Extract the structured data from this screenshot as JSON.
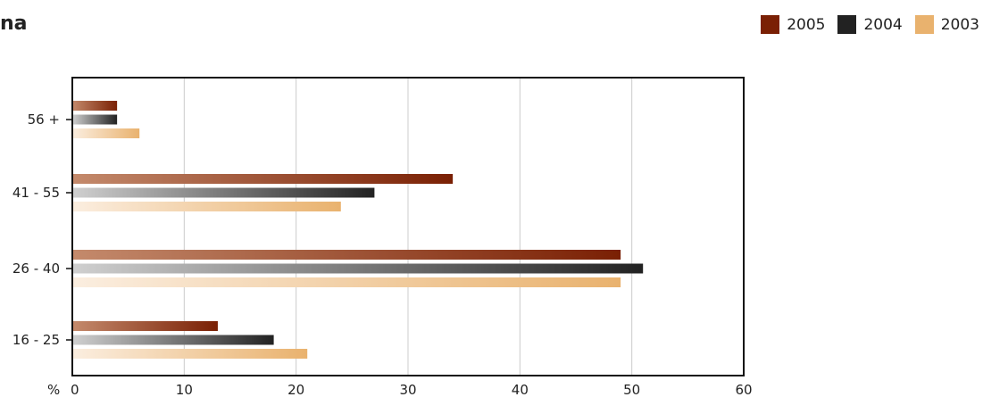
{
  "chart_data": {
    "type": "bar",
    "orientation": "horizontal",
    "title": "na",
    "categories": [
      "56 +",
      "41 - 55",
      "26 - 40",
      "16 - 25"
    ],
    "series": [
      {
        "name": "2005",
        "values": [
          4,
          34,
          49,
          13
        ],
        "color": "#7a2004"
      },
      {
        "name": "2004",
        "values": [
          4,
          27,
          51,
          18
        ],
        "color": "#222222"
      },
      {
        "name": "2003",
        "values": [
          6,
          24,
          49,
          21
        ],
        "color": "#e9b26e"
      }
    ],
    "xlabel": "%",
    "xlim": [
      0,
      60
    ],
    "xticks": [
      "0",
      "10",
      "20",
      "30",
      "40",
      "50",
      "60"
    ],
    "grid": true,
    "legend_position": "top-right"
  }
}
